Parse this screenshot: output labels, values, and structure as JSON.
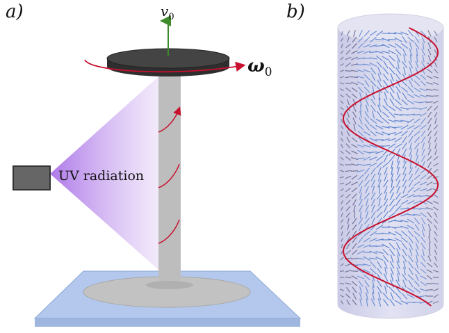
{
  "panels": {
    "a": {
      "label": "a)"
    },
    "b": {
      "label": "b)"
    }
  },
  "annotations": {
    "uv_label": "UV radiation",
    "velocity_symbol": "v",
    "velocity_sub": "0",
    "angular_symbol": "ω",
    "angular_sub": "0"
  },
  "colors": {
    "platform_fill": "#a9bfe6",
    "column_fill": "#bdbdbd",
    "disk_fill": "#3a3a3a",
    "helix_red": "#c8102e",
    "uv_purple": "#b27be8",
    "velocity_arrow": "#3f8a2a",
    "director_blue": "#4a78c8",
    "cylinder_fill": "#c9c9e6"
  }
}
